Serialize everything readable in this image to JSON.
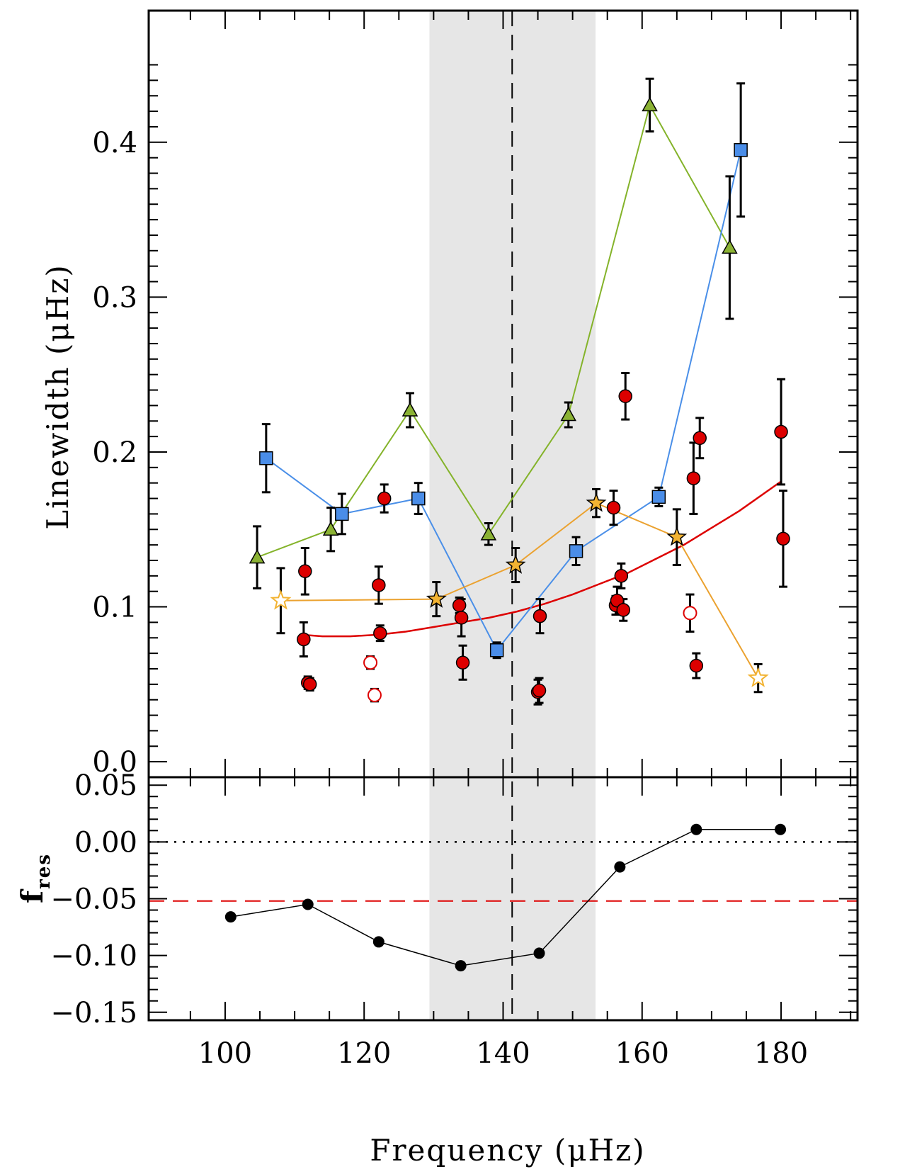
{
  "chart_data": [
    {
      "panel": "top",
      "type": "scatter",
      "xlabel": "Frequency (μHz)",
      "ylabel": "Linewidth (μHz)",
      "xlim": [
        89,
        191
      ],
      "ylim": [
        -0.01,
        0.485
      ],
      "xticks": [
        100,
        120,
        140,
        160,
        180
      ],
      "yticks": [
        {
          "value": 0.0,
          "label": "0.0"
        },
        {
          "value": 0.1,
          "label": "0.1"
        },
        {
          "value": 0.2,
          "label": "0.2"
        },
        {
          "value": 0.3,
          "label": "0.3"
        },
        {
          "value": 0.4,
          "label": "0.4"
        }
      ],
      "shaded_region": {
        "from": 129.4,
        "to": 153.3,
        "color": "#e6e6e6"
      },
      "vline": {
        "x": 141.3,
        "style": "dashed",
        "color": "#000000"
      },
      "series": [
        {
          "name": "triangles",
          "marker": "triangle",
          "color": "#8bb234",
          "line_color": "#84b32a",
          "connected": true,
          "points": [
            {
              "x": 104.6,
              "y": 0.132,
              "err": 0.02
            },
            {
              "x": 115.2,
              "y": 0.15,
              "err": 0.014
            },
            {
              "x": 126.6,
              "y": 0.227,
              "err": 0.011
            },
            {
              "x": 137.9,
              "y": 0.147,
              "err": 0.007
            },
            {
              "x": 149.4,
              "y": 0.224,
              "err": 0.008
            },
            {
              "x": 161.1,
              "y": 0.424,
              "err": 0.017
            },
            {
              "x": 172.6,
              "y": 0.332,
              "err": 0.046
            }
          ]
        },
        {
          "name": "squares",
          "marker": "square",
          "color": "#4a8de8",
          "line_color": "#4a8fe8",
          "connected": true,
          "points": [
            {
              "x": 105.9,
              "y": 0.196,
              "err": 0.022
            },
            {
              "x": 116.8,
              "y": 0.16,
              "err": 0.013
            },
            {
              "x": 127.8,
              "y": 0.17,
              "err": 0.01
            },
            {
              "x": 139.1,
              "y": 0.072,
              "err": 0.005
            },
            {
              "x": 150.5,
              "y": 0.136,
              "err": 0.009
            },
            {
              "x": 162.4,
              "y": 0.171,
              "err": 0.006
            },
            {
              "x": 174.2,
              "y": 0.395,
              "err": 0.043
            }
          ]
        },
        {
          "name": "stars",
          "marker": "star",
          "color": "#f2b332",
          "line_color": "#eba230",
          "connected": true,
          "points": [
            {
              "x": 108.0,
              "y": 0.104,
              "err": 0.021,
              "open": true
            },
            {
              "x": 130.4,
              "y": 0.105,
              "err": 0.011,
              "open": false
            },
            {
              "x": 141.8,
              "y": 0.127,
              "err": 0.011,
              "open": false
            },
            {
              "x": 153.4,
              "y": 0.167,
              "err": 0.009,
              "open": false
            },
            {
              "x": 165.0,
              "y": 0.145,
              "err": 0.018,
              "open": false
            },
            {
              "x": 176.7,
              "y": 0.054,
              "err": 0.009,
              "open": true
            }
          ]
        },
        {
          "name": "circles",
          "marker": "circle",
          "color": "#dd0000",
          "connected": false,
          "points": [
            {
              "x": 111.3,
              "y": 0.079,
              "err": 0.011,
              "open": false
            },
            {
              "x": 111.5,
              "y": 0.123,
              "err": 0.015,
              "open": false
            },
            {
              "x": 111.9,
              "y": 0.051,
              "err": 0.004,
              "open": false
            },
            {
              "x": 112.2,
              "y": 0.05,
              "err": 0.004,
              "open": false
            },
            {
              "x": 120.9,
              "y": 0.064,
              "err": 0.004,
              "open": true
            },
            {
              "x": 121.5,
              "y": 0.043,
              "err": 0.004,
              "open": true
            },
            {
              "x": 122.1,
              "y": 0.114,
              "err": 0.012,
              "open": false
            },
            {
              "x": 122.3,
              "y": 0.083,
              "err": 0.005,
              "open": false
            },
            {
              "x": 122.9,
              "y": 0.17,
              "err": 0.009,
              "open": false
            },
            {
              "x": 133.7,
              "y": 0.101,
              "err": 0.005,
              "open": false
            },
            {
              "x": 134.0,
              "y": 0.093,
              "err": 0.012,
              "open": false
            },
            {
              "x": 134.2,
              "y": 0.064,
              "err": 0.011,
              "open": false
            },
            {
              "x": 145.0,
              "y": 0.045,
              "err": 0.008,
              "open": false
            },
            {
              "x": 145.2,
              "y": 0.046,
              "err": 0.008,
              "open": false
            },
            {
              "x": 145.3,
              "y": 0.094,
              "err": 0.011,
              "open": false
            },
            {
              "x": 155.9,
              "y": 0.164,
              "err": 0.011,
              "open": false
            },
            {
              "x": 156.2,
              "y": 0.101,
              "err": 0.006,
              "open": false
            },
            {
              "x": 156.4,
              "y": 0.104,
              "err": 0.009,
              "open": false
            },
            {
              "x": 157.0,
              "y": 0.12,
              "err": 0.008,
              "open": false
            },
            {
              "x": 157.3,
              "y": 0.098,
              "err": 0.007,
              "open": false
            },
            {
              "x": 157.6,
              "y": 0.236,
              "err": 0.015,
              "open": false
            },
            {
              "x": 166.9,
              "y": 0.096,
              "err": 0.012,
              "open": true
            },
            {
              "x": 167.4,
              "y": 0.183,
              "err": 0.023,
              "open": false
            },
            {
              "x": 167.8,
              "y": 0.062,
              "err": 0.008,
              "open": false
            },
            {
              "x": 168.3,
              "y": 0.209,
              "err": 0.013,
              "open": false
            },
            {
              "x": 180.0,
              "y": 0.213,
              "err": 0.034,
              "open": false
            },
            {
              "x": 180.3,
              "y": 0.144,
              "err": 0.031,
              "open": false
            }
          ]
        }
      ],
      "fit_curve": {
        "name": "red fit",
        "color": "#dd0000",
        "x": [
          111,
          114,
          118,
          122,
          126,
          130,
          134,
          138,
          142,
          146,
          150,
          154,
          158,
          162,
          166,
          170,
          174,
          180
        ],
        "y": [
          0.082,
          0.081,
          0.081,
          0.082,
          0.084,
          0.087,
          0.09,
          0.093,
          0.097,
          0.102,
          0.108,
          0.115,
          0.122,
          0.131,
          0.14,
          0.151,
          0.162,
          0.181
        ]
      }
    },
    {
      "panel": "bottom",
      "type": "line",
      "xlabel": "Frequency (μHz)",
      "ylabel": "f",
      "ylabel_sub": "res",
      "xlim": [
        89,
        191
      ],
      "ylim": [
        -0.157,
        0.057
      ],
      "yticks": [
        {
          "value": 0.05,
          "label": "0.05"
        },
        {
          "value": 0.0,
          "label": "0.00"
        },
        {
          "value": -0.05,
          "label": "−0.05"
        },
        {
          "value": -0.1,
          "label": "−0.10"
        },
        {
          "value": -0.15,
          "label": "−0.15"
        }
      ],
      "hlines": [
        {
          "y": 0.0,
          "style": "dotted",
          "color": "#000000"
        },
        {
          "y": -0.052,
          "style": "dashed",
          "color": "#dd0000"
        }
      ],
      "series": [
        {
          "name": "fres",
          "marker": "circle",
          "color": "#000000",
          "x": [
            100.8,
            111.9,
            122.1,
            133.9,
            145.2,
            156.8,
            167.8,
            179.9
          ],
          "y": [
            -0.066,
            -0.055,
            -0.088,
            -0.109,
            -0.098,
            -0.022,
            0.011,
            0.011
          ]
        }
      ]
    }
  ]
}
